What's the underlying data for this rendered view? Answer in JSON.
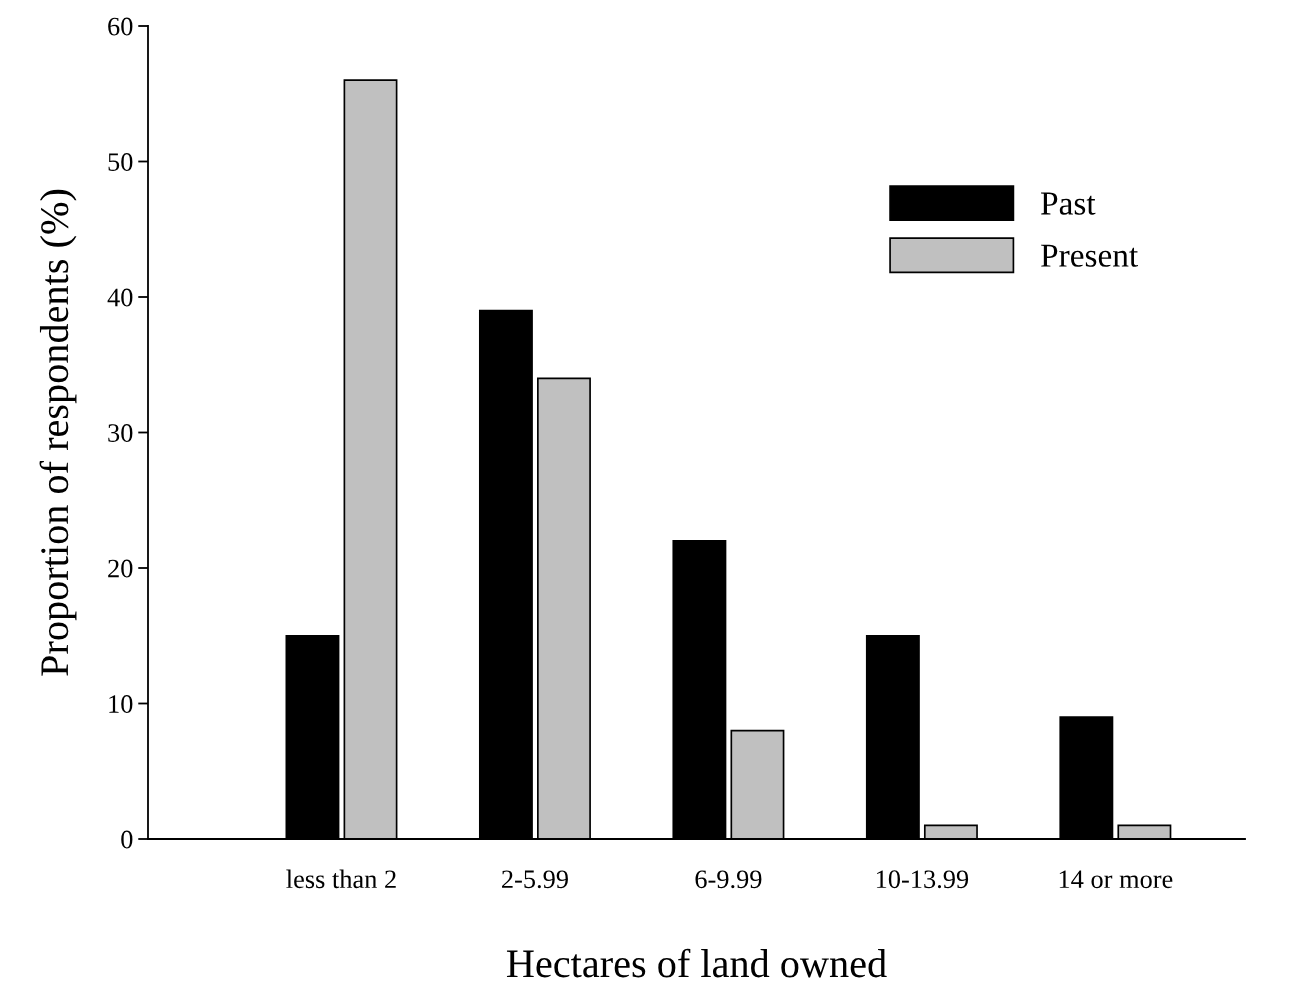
{
  "chart_data": {
    "type": "bar",
    "xlabel": "Hectares of land owned",
    "ylabel": "Proportion of respondents (%)",
    "categories": [
      "less than 2",
      "2-5.99",
      "6-9.99",
      "10-13.99",
      "14 or more"
    ],
    "series": [
      {
        "name": "Past",
        "color": "#000000",
        "values": [
          15,
          39,
          22,
          15,
          9
        ]
      },
      {
        "name": "Present",
        "color": "#c0c0c0",
        "values": [
          56,
          34,
          8,
          1,
          1
        ]
      }
    ],
    "ylim": [
      0,
      60
    ],
    "yticks": [
      0,
      10,
      20,
      30,
      40,
      50,
      60
    ],
    "grid": false,
    "legend": "top right"
  }
}
